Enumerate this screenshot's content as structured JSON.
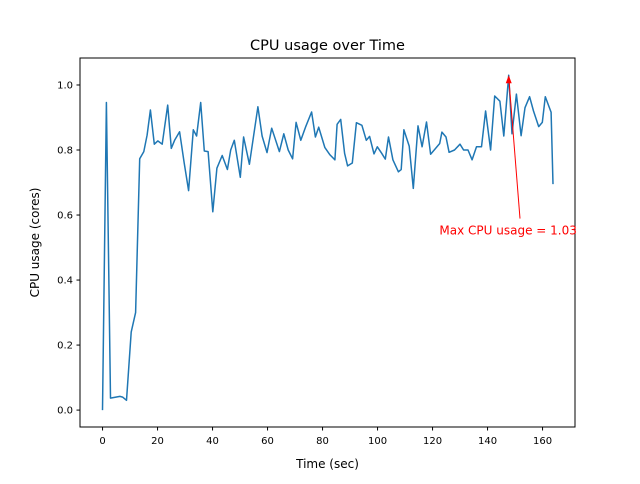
{
  "chart_data": {
    "type": "line",
    "title": "CPU usage over Time",
    "xlabel": "Time (sec)",
    "ylabel": "CPU usage (cores)",
    "xlim": [
      -8.2,
      171.8
    ],
    "ylim": [
      -0.052,
      1.083
    ],
    "xticks": [
      0,
      20,
      40,
      60,
      80,
      100,
      120,
      140,
      160
    ],
    "xtick_labels": [
      "0",
      "20",
      "40",
      "60",
      "80",
      "100",
      "120",
      "140",
      "160"
    ],
    "yticks": [
      0.0,
      0.2,
      0.4,
      0.6,
      0.8,
      1.0
    ],
    "ytick_labels": [
      "0.0",
      "0.2",
      "0.4",
      "0.6",
      "0.8",
      "1.0"
    ],
    "grid": false,
    "series": [
      {
        "name": "CPU usage",
        "color": "#1f77b4",
        "x": [
          0,
          1.4,
          2.9,
          6.3,
          7.3,
          8.7,
          10.4,
          12,
          13.5,
          15,
          16.2,
          17.4,
          18.8,
          20.1,
          21.7,
          23.7,
          25,
          26.2,
          28,
          29.7,
          31.3,
          33,
          34.2,
          35.7,
          37,
          38.4,
          40.1,
          41.6,
          43.5,
          45.4,
          46.6,
          47.9,
          50.1,
          51.3,
          53.4,
          56.5,
          58,
          59.8,
          61.5,
          64.3,
          65.9,
          67.5,
          69.1,
          70.4,
          72.1,
          73.8,
          76,
          77.4,
          78.6,
          80.8,
          82.7,
          84.5,
          85.3,
          86.6,
          88,
          89.1,
          90.8,
          92.3,
          94.3,
          95.9,
          97.1,
          98.7,
          99.9,
          101.5,
          102.8,
          104,
          105.6,
          107.6,
          108.6,
          109.6,
          111.5,
          113,
          114.7,
          116.2,
          117.8,
          119.3,
          121.1,
          122.6,
          123.4,
          124.9,
          126,
          128,
          130,
          131.3,
          132.9,
          134.4,
          136,
          137.8,
          139.3,
          141.1,
          142.6,
          144.5,
          145.9,
          147.7,
          148.9,
          150.5,
          152.2,
          153.6,
          155.3,
          156.7,
          158.6,
          159.9,
          161,
          163.1,
          163.8
        ],
        "y": [
          0,
          0.946,
          0.037,
          0.042,
          0.04,
          0.03,
          0.24,
          0.3,
          0.773,
          0.795,
          0.846,
          0.923,
          0.818,
          0.828,
          0.818,
          0.938,
          0.805,
          0.83,
          0.856,
          0.76,
          0.675,
          0.862,
          0.843,
          0.946,
          0.797,
          0.795,
          0.61,
          0.744,
          0.783,
          0.74,
          0.8,
          0.83,
          0.716,
          0.84,
          0.756,
          0.933,
          0.843,
          0.792,
          0.867,
          0.795,
          0.85,
          0.8,
          0.773,
          0.885,
          0.83,
          0.87,
          0.917,
          0.84,
          0.87,
          0.808,
          0.785,
          0.77,
          0.879,
          0.894,
          0.79,
          0.751,
          0.76,
          0.884,
          0.876,
          0.83,
          0.842,
          0.788,
          0.81,
          0.79,
          0.772,
          0.84,
          0.77,
          0.733,
          0.74,
          0.862,
          0.812,
          0.682,
          0.874,
          0.81,
          0.886,
          0.787,
          0.805,
          0.82,
          0.855,
          0.84,
          0.793,
          0.8,
          0.818,
          0.8,
          0.8,
          0.77,
          0.81,
          0.81,
          0.92,
          0.8,
          0.966,
          0.95,
          0.843,
          1.03,
          0.85,
          0.972,
          0.844,
          0.93,
          0.964,
          0.92,
          0.872,
          0.885,
          0.964,
          0.916,
          0.695
        ]
      }
    ],
    "annotations": [
      {
        "text": "Max CPU usage = 1.03",
        "color": "#ff0000",
        "xy": [
          147.7,
          1.03
        ],
        "xytext": [
          122.5,
          0.54
        ]
      }
    ]
  }
}
